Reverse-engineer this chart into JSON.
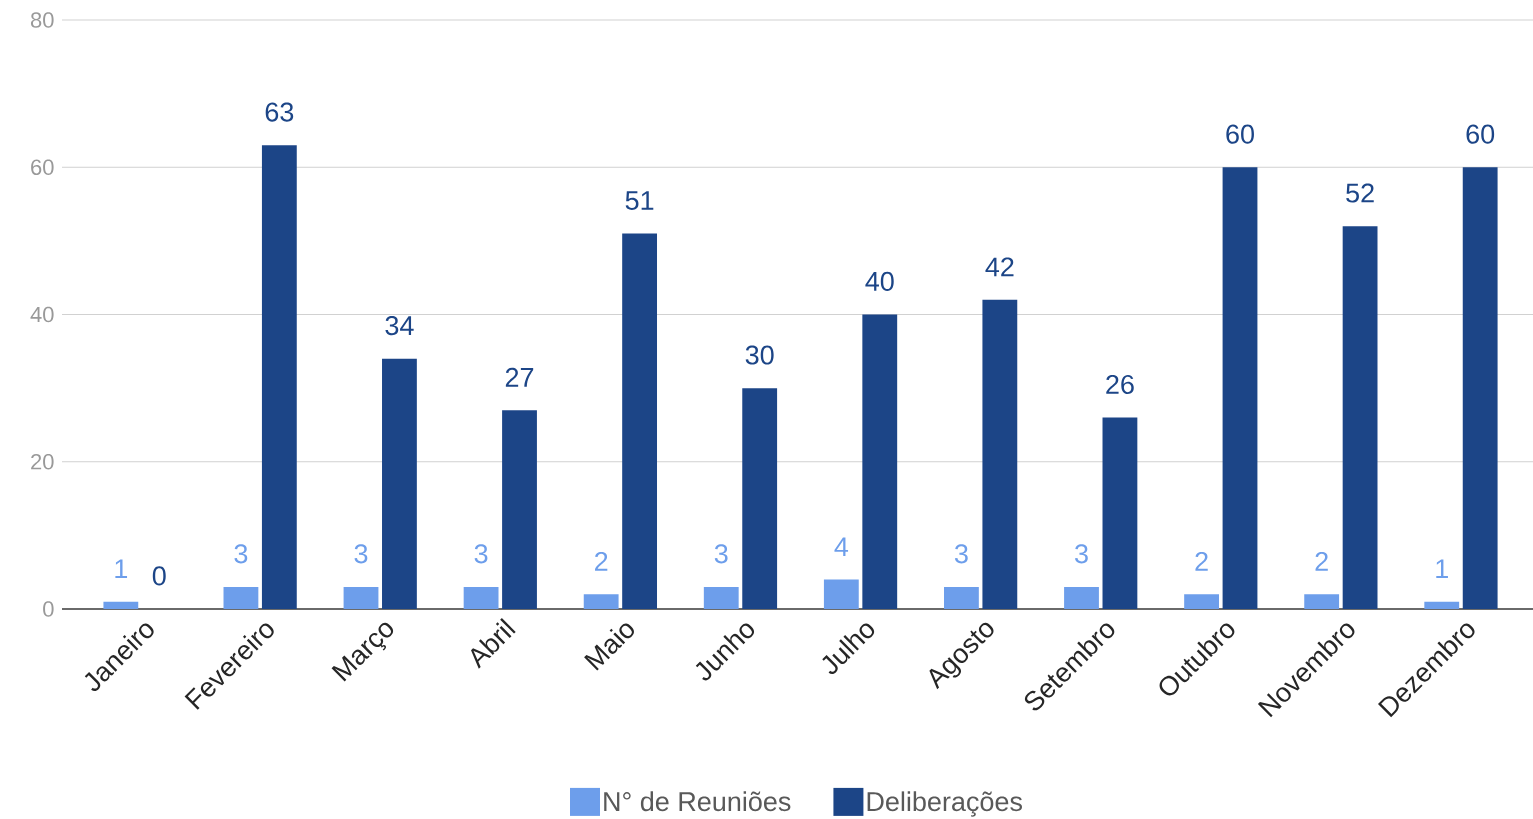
{
  "chart_data": {
    "type": "bar",
    "categories": [
      "Janeiro",
      "Fevereiro",
      "Março",
      "Abril",
      "Maio",
      "Junho",
      "Julho",
      "Agosto",
      "Setembro",
      "Outubro",
      "Novembro",
      "Dezembro"
    ],
    "series": [
      {
        "name": "N° de Reuniões",
        "color": "#6d9eeb",
        "values": [
          1,
          3,
          3,
          3,
          2,
          3,
          4,
          3,
          3,
          2,
          2,
          1
        ]
      },
      {
        "name": "Deliberações",
        "color": "#1c4587",
        "values": [
          0,
          63,
          34,
          27,
          51,
          30,
          40,
          42,
          26,
          60,
          52,
          60
        ]
      }
    ],
    "ylim": [
      0,
      80
    ],
    "yticks": [
      0,
      20,
      40,
      60,
      80
    ],
    "grid": "y",
    "legend": "bottom",
    "data_labels": true
  }
}
